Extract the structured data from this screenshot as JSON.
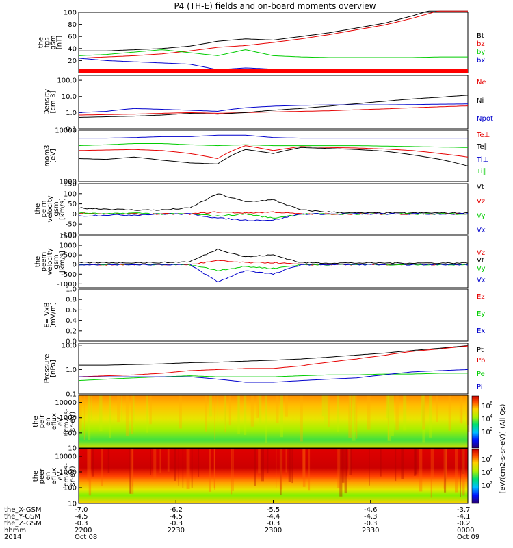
{
  "title": "P4 (TH-E) fields and on-board moments overview",
  "time_axis": {
    "tick_labels": [
      "2200",
      "2230",
      "2300",
      "2330",
      "0000"
    ],
    "start_label": "Oct 08",
    "end_label": "Oct 09"
  },
  "ephemeris": {
    "rows": [
      {
        "label": "the_X-GSM",
        "values": [
          "-7.0",
          "-6.2",
          "-5.5",
          "-4.6",
          "-3.7"
        ]
      },
      {
        "label": "the_Y-GSM",
        "values": [
          "-4.5",
          "-4.5",
          "-4.4",
          "-4.3",
          "-4.1"
        ]
      },
      {
        "label": "the_Z-GSM",
        "values": [
          "-0.3",
          "-0.3",
          "-0.3",
          "-0.3",
          "-0.2"
        ]
      },
      {
        "label": "hhmm",
        "values": [
          "2200",
          "2230",
          "2300",
          "2330",
          "0000"
        ]
      },
      {
        "label": "2014",
        "values": [
          "Oct 08",
          "",
          "",
          "",
          "Oct 09"
        ]
      }
    ]
  },
  "colors": {
    "black": "#000000",
    "red": "#e60000",
    "green": "#00cc00",
    "blue": "#0000cc"
  },
  "chart_data": [
    {
      "type": "line",
      "ylabel": [
        "the",
        "fgs",
        "gsm",
        "[nT]"
      ],
      "ylim": [
        0,
        100
      ],
      "yticks": [
        "20",
        "40",
        "60",
        "80",
        "100"
      ],
      "x": [
        "22:00",
        "22:10",
        "22:20",
        "22:30",
        "22:40",
        "22:45",
        "22:50",
        "22:55",
        "23:00",
        "23:10",
        "23:20",
        "23:30",
        "23:40",
        "23:50",
        "00:00"
      ],
      "series": [
        {
          "name": "Bt",
          "color": "black",
          "values": [
            36,
            36,
            38,
            40,
            44,
            52,
            56,
            54,
            60,
            66,
            74,
            82,
            94,
            108,
            120
          ]
        },
        {
          "name": "bz",
          "color": "red",
          "values": [
            24,
            26,
            28,
            31,
            36,
            42,
            45,
            50,
            56,
            63,
            71,
            79,
            90,
            103,
            115
          ]
        },
        {
          "name": "by",
          "color": "green",
          "values": [
            28,
            30,
            34,
            38,
            33,
            28,
            38,
            28,
            26,
            25,
            25,
            25,
            25,
            26,
            26
          ]
        },
        {
          "name": "bx",
          "color": "blue",
          "values": [
            24,
            20,
            18,
            16,
            14,
            5,
            8,
            6,
            5,
            5,
            5,
            4,
            5,
            5,
            5
          ]
        }
      ]
    },
    {
      "type": "line",
      "ylabel": [
        "Density",
        "[cm-3]"
      ],
      "log": true,
      "ylim": [
        0.1,
        200
      ],
      "yticks": [
        "0.1",
        "1.0",
        "10.0",
        "100.0"
      ],
      "x": [
        "22:00",
        "22:10",
        "22:20",
        "22:30",
        "22:40",
        "22:45",
        "22:50",
        "22:55",
        "23:00",
        "23:10",
        "23:20",
        "23:30",
        "23:40",
        "23:50",
        "00:00"
      ],
      "series": [
        {
          "name": "Ne",
          "color": "red",
          "values": [
            0.7,
            0.75,
            0.8,
            0.9,
            1.0,
            0.9,
            1.0,
            1.1,
            1.2,
            1.3,
            1.5,
            1.7,
            2.0,
            2.3,
            2.6
          ]
        },
        {
          "name": "Ni",
          "color": "black",
          "values": [
            0.5,
            0.55,
            0.6,
            0.7,
            0.9,
            0.8,
            1.0,
            1.4,
            1.8,
            2.5,
            3.5,
            5,
            7,
            9,
            12
          ]
        },
        {
          "name": "Npot",
          "color": "blue",
          "values": [
            1.0,
            1.2,
            1.8,
            1.6,
            1.4,
            1.2,
            2.0,
            2.5,
            2.8,
            3.0,
            3.0,
            3.0,
            3.1,
            3.3,
            3.4
          ]
        }
      ]
    },
    {
      "type": "line",
      "ylabel": [
        "mom3",
        "[eV]"
      ],
      "log": true,
      "ylim": [
        1000,
        10000
      ],
      "yticks": [
        "1000",
        "10000"
      ],
      "x": [
        "22:00",
        "22:10",
        "22:20",
        "22:30",
        "22:40",
        "22:45",
        "22:50",
        "22:55",
        "23:00",
        "23:10",
        "23:20",
        "23:30",
        "23:40",
        "23:50",
        "00:00"
      ],
      "series": [
        {
          "name": "Te⊥",
          "color": "red",
          "values": [
            4000,
            4100,
            4200,
            4000,
            3500,
            2800,
            5000,
            4000,
            4800,
            4600,
            4500,
            4300,
            4000,
            3500,
            3000
          ]
        },
        {
          "name": "Te∥",
          "color": "black",
          "values": [
            2800,
            2700,
            3000,
            2600,
            2300,
            2200,
            4200,
            3500,
            4600,
            4400,
            4200,
            3900,
            3300,
            2700,
            2000
          ]
        },
        {
          "name": "Ti⊥",
          "color": "blue",
          "values": [
            7000,
            7000,
            7200,
            7500,
            7500,
            8000,
            8000,
            7200,
            7000,
            7000,
            7000,
            7000,
            7000,
            7000,
            7000
          ]
        },
        {
          "name": "Ti∥",
          "color": "green",
          "values": [
            5000,
            5200,
            5500,
            5500,
            5200,
            5000,
            5200,
            5000,
            5000,
            5000,
            5000,
            4900,
            4800,
            4700,
            4600
          ]
        }
      ]
    },
    {
      "type": "line",
      "ylabel": [
        "the",
        "peim",
        "velocity",
        "gsm",
        "[km/s]"
      ],
      "ylim": [
        -100,
        150
      ],
      "yticks": [
        "-100",
        "-50",
        "0",
        "50",
        "100",
        "150"
      ],
      "x": [
        "22:00",
        "22:10",
        "22:20",
        "22:30",
        "22:40",
        "22:45",
        "22:50",
        "22:55",
        "23:00",
        "23:10",
        "23:20",
        "23:30",
        "23:40",
        "23:50",
        "00:00"
      ],
      "series": [
        {
          "name": "Vt",
          "color": "black",
          "values": [
            30,
            25,
            20,
            20,
            30,
            100,
            60,
            70,
            20,
            10,
            5,
            5,
            5,
            5,
            5
          ]
        },
        {
          "name": "Vz",
          "color": "red",
          "values": [
            5,
            0,
            0,
            0,
            0,
            10,
            5,
            10,
            0,
            0,
            0,
            0,
            0,
            0,
            0
          ]
        },
        {
          "name": "Vy",
          "color": "green",
          "values": [
            5,
            0,
            5,
            0,
            0,
            -10,
            0,
            -20,
            0,
            0,
            0,
            0,
            0,
            0,
            0
          ]
        },
        {
          "name": "Vx",
          "color": "blue",
          "values": [
            -10,
            -5,
            -5,
            0,
            0,
            -20,
            -30,
            -30,
            0,
            0,
            0,
            0,
            0,
            0,
            0
          ]
        }
      ]
    },
    {
      "type": "line",
      "ylabel": [
        "the",
        "peem",
        "velocity",
        "gsm",
        "[km/s]"
      ],
      "ylim": [
        -1200,
        1500
      ],
      "yticks": [
        "-1000",
        "-500",
        "0",
        "500",
        "1000",
        "1500"
      ],
      "x": [
        "22:00",
        "22:10",
        "22:20",
        "22:30",
        "22:40",
        "22:45",
        "22:50",
        "22:55",
        "23:00",
        "23:10",
        "23:20",
        "23:30",
        "23:40",
        "23:50",
        "00:00"
      ],
      "series": [
        {
          "name": "Vt",
          "color": "black",
          "values": [
            100,
            100,
            100,
            100,
            150,
            800,
            400,
            500,
            100,
            80,
            80,
            80,
            80,
            80,
            80
          ]
        },
        {
          "name": "Vz",
          "color": "red",
          "values": [
            0,
            0,
            0,
            0,
            0,
            200,
            100,
            100,
            0,
            0,
            0,
            0,
            0,
            0,
            0
          ]
        },
        {
          "name": "Vy",
          "color": "green",
          "values": [
            0,
            0,
            0,
            0,
            0,
            -300,
            -100,
            -200,
            0,
            0,
            0,
            0,
            0,
            0,
            0
          ]
        },
        {
          "name": "Vx",
          "color": "blue",
          "values": [
            0,
            0,
            0,
            0,
            0,
            -900,
            -300,
            -500,
            0,
            0,
            0,
            0,
            0,
            0,
            0
          ]
        }
      ]
    },
    {
      "type": "line",
      "ylabel": [
        "E=-VxB",
        "[mV/m]"
      ],
      "ylim": [
        0,
        1
      ],
      "yticks": [
        "0.0",
        "0.2",
        "0.4",
        "0.6",
        "0.8",
        "1.0"
      ],
      "x": [],
      "series": [
        {
          "name": "Ez",
          "color": "red",
          "values": []
        },
        {
          "name": "Ey",
          "color": "green",
          "values": []
        },
        {
          "name": "Ex",
          "color": "blue",
          "values": []
        }
      ]
    },
    {
      "type": "line",
      "ylabel": [
        "Pressure",
        "[nPa]"
      ],
      "log": true,
      "ylim": [
        0.1,
        12
      ],
      "yticks": [
        "0.1",
        "1.0",
        "10.0"
      ],
      "x": [
        "22:00",
        "22:10",
        "22:20",
        "22:30",
        "22:40",
        "22:45",
        "22:50",
        "22:55",
        "23:00",
        "23:10",
        "23:20",
        "23:30",
        "23:40",
        "23:50",
        "00:00"
      ],
      "series": [
        {
          "name": "Pt",
          "color": "black",
          "values": [
            1.5,
            1.5,
            1.6,
            1.7,
            1.9,
            2.0,
            2.2,
            2.4,
            2.7,
            3.2,
            3.9,
            4.7,
            6,
            7.5,
            9.5
          ]
        },
        {
          "name": "Pb",
          "color": "red",
          "values": [
            0.5,
            0.55,
            0.6,
            0.7,
            0.9,
            1.0,
            1.1,
            1.1,
            1.4,
            2.0,
            2.7,
            3.8,
            5.5,
            7,
            9.2
          ]
        },
        {
          "name": "Pe",
          "color": "green",
          "values": [
            0.35,
            0.4,
            0.45,
            0.5,
            0.55,
            0.5,
            0.5,
            0.5,
            0.55,
            0.6,
            0.6,
            0.65,
            0.65,
            0.7,
            0.7
          ]
        },
        {
          "name": "Pi",
          "color": "blue",
          "values": [
            0.5,
            0.5,
            0.5,
            0.5,
            0.5,
            0.4,
            0.3,
            0.3,
            0.35,
            0.4,
            0.45,
            0.6,
            0.8,
            0.9,
            1.0
          ]
        }
      ]
    },
    {
      "type": "heatmap",
      "ylabel": [
        "the",
        "peir",
        "en",
        "eflux",
        "eV",
        "(cm2-s-",
        "sr-eV)"
      ],
      "log": true,
      "ylim": [
        10,
        30000
      ],
      "yticks": [
        "10",
        "100",
        "1000",
        "10000"
      ]
    },
    {
      "type": "heatmap",
      "ylabel": [
        "the",
        "peer",
        "en",
        "eflux",
        "eV",
        "(cm2-s-",
        "sr-eV)"
      ],
      "log": true,
      "ylim": [
        10,
        30000
      ],
      "yticks": [
        "10",
        "100",
        "1000",
        "10000"
      ]
    }
  ],
  "colorbar": {
    "label": "[eV/(cm2-s-sr-eV)] (All Qs)",
    "top_ticks": [
      "10",
      "10",
      "10"
    ],
    "top_exps": [
      "6",
      "4",
      "2"
    ],
    "bottom_ticks": [
      "10",
      "10",
      "10"
    ],
    "bottom_exps": [
      "6",
      "4",
      "2"
    ]
  }
}
